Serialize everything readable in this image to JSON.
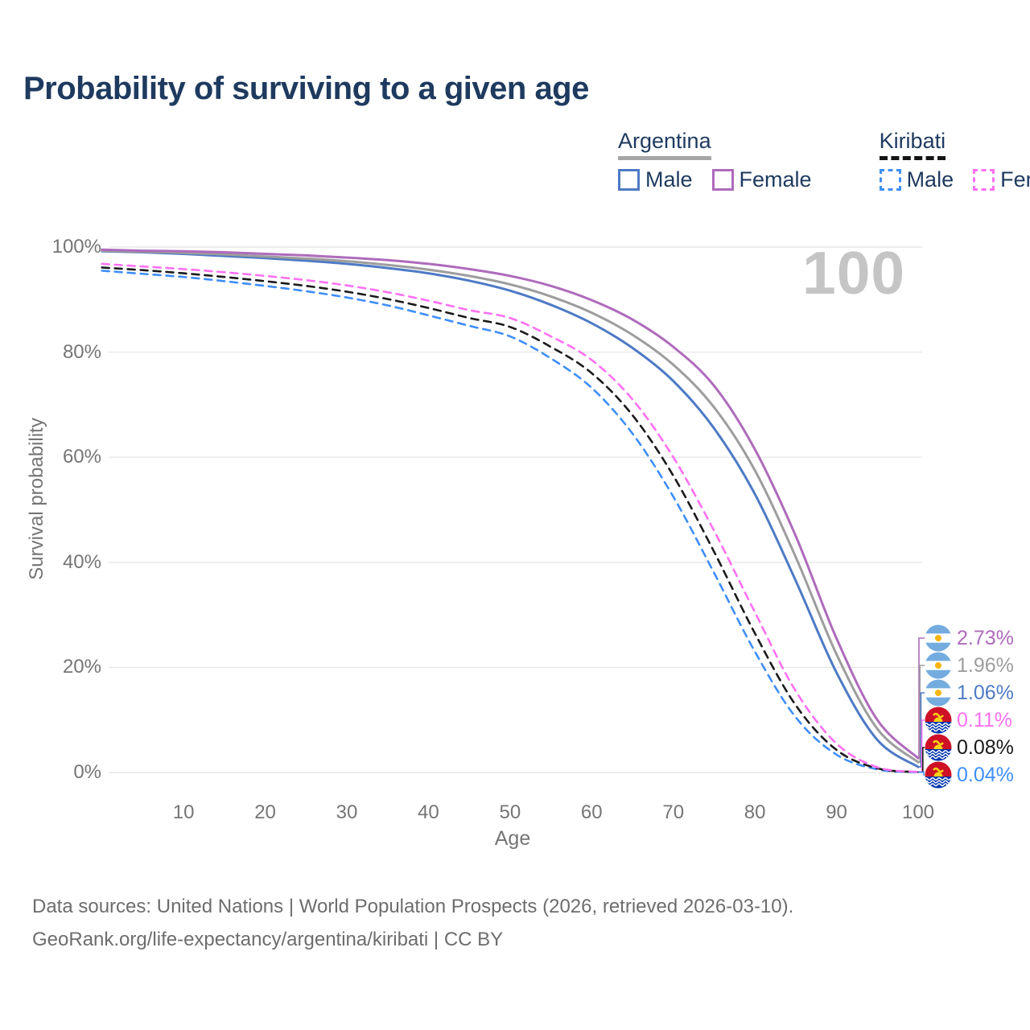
{
  "title": "Probability of surviving to a given age",
  "watermark": "100",
  "legend": {
    "groups": [
      {
        "name": "Argentina",
        "line_style": "solid",
        "underline_color": "#a6a6a6",
        "items": [
          {
            "label": "Male",
            "color": "#4e7ac5",
            "dashed": false
          },
          {
            "label": "Female",
            "color": "#ae6bbb",
            "dashed": false
          }
        ]
      },
      {
        "name": "Kiribati",
        "line_style": "dashed",
        "underline_color": "#141414",
        "items": [
          {
            "label": "Male",
            "color": "#3f8efa",
            "dashed": true
          },
          {
            "label": "Female",
            "color": "#ff70f2",
            "dashed": true
          }
        ]
      }
    ]
  },
  "chart_data": {
    "type": "line",
    "title": "Probability of surviving to a given age",
    "xlabel": "Age",
    "ylabel": "Survival probability",
    "xlim": [
      0,
      100
    ],
    "ylim": [
      0,
      100
    ],
    "grid": "horizontal-only",
    "x": [
      0,
      5,
      10,
      15,
      20,
      25,
      30,
      35,
      40,
      45,
      50,
      55,
      60,
      65,
      70,
      75,
      80,
      85,
      90,
      95,
      100
    ],
    "xticks": [
      10,
      20,
      30,
      40,
      50,
      60,
      70,
      80,
      90,
      100
    ],
    "yticks": [
      {
        "value": 100,
        "label": "100%"
      },
      {
        "value": 80,
        "label": "80%"
      },
      {
        "value": 60,
        "label": "60%"
      },
      {
        "value": 40,
        "label": "40%"
      },
      {
        "value": 20,
        "label": "20%"
      },
      {
        "value": 0,
        "label": "0%"
      }
    ],
    "series": [
      {
        "name": "Argentina Female",
        "country": "Argentina",
        "sex": "Female",
        "color": "#ae6bbb",
        "dashed": false,
        "flag": "argentina",
        "end_label": "2.73%",
        "values": [
          99.5,
          99.3,
          99.2,
          99.0,
          98.7,
          98.4,
          98.0,
          97.5,
          96.8,
          95.8,
          94.5,
          92.6,
          89.9,
          86.2,
          81.0,
          73.6,
          61.5,
          45.0,
          25.5,
          10.0,
          2.73
        ]
      },
      {
        "name": "Argentina Both sexes",
        "country": "Argentina",
        "sex": "Both",
        "color": "#9d9d9d",
        "dashed": false,
        "flag": "argentina",
        "end_label": "1.96%",
        "values": [
          99.3,
          99.1,
          98.9,
          98.6,
          98.2,
          97.8,
          97.3,
          96.6,
          95.7,
          94.5,
          92.9,
          90.6,
          87.5,
          83.3,
          77.6,
          69.5,
          57.5,
          41.0,
          22.5,
          8.3,
          1.96
        ]
      },
      {
        "name": "Argentina Male",
        "country": "Argentina",
        "sex": "Male",
        "color": "#4e7ac5",
        "dashed": false,
        "flag": "argentina",
        "end_label": "1.06%",
        "values": [
          99.2,
          99.0,
          98.7,
          98.3,
          97.9,
          97.4,
          96.8,
          96.0,
          95.0,
          93.6,
          91.7,
          89.0,
          85.5,
          80.8,
          74.5,
          65.5,
          53.0,
          36.5,
          19.0,
          6.2,
          1.06
        ]
      },
      {
        "name": "Kiribati Female",
        "country": "Kiribati",
        "sex": "Female",
        "color": "#ff70f2",
        "dashed": true,
        "flag": "kiribati",
        "end_label": "0.11%",
        "values": [
          96.8,
          96.3,
          95.8,
          95.2,
          94.5,
          93.7,
          92.7,
          91.4,
          89.8,
          88.0,
          86.5,
          83.0,
          78.5,
          71.0,
          60.0,
          46.0,
          30.5,
          15.5,
          5.5,
          1.0,
          0.11
        ]
      },
      {
        "name": "Kiribati Both sexes",
        "country": "Kiribati",
        "sex": "Both",
        "color": "#1a1a1a",
        "dashed": true,
        "flag": "kiribati",
        "end_label": "0.08%",
        "values": [
          96.1,
          95.6,
          95.0,
          94.3,
          93.5,
          92.6,
          91.5,
          90.1,
          88.4,
          86.5,
          84.8,
          81.0,
          76.0,
          68.0,
          56.5,
          42.0,
          26.5,
          12.8,
          4.3,
          0.8,
          0.08
        ]
      },
      {
        "name": "Kiribati Male",
        "country": "Kiribati",
        "sex": "Male",
        "color": "#3f8efa",
        "dashed": true,
        "flag": "kiribati",
        "end_label": "0.04%",
        "values": [
          95.5,
          94.9,
          94.3,
          93.5,
          92.6,
          91.6,
          90.4,
          88.9,
          87.0,
          85.0,
          83.0,
          78.8,
          73.2,
          64.5,
          52.5,
          38.0,
          23.0,
          10.5,
          3.4,
          0.6,
          0.04
        ]
      }
    ]
  },
  "flags": {
    "argentina": {
      "band": "#74ACDF",
      "middle": "#ffffff",
      "sun": "#F6B40E"
    },
    "kiribati": {
      "top": "#CE1126",
      "bottom": "#0035ad",
      "emblem": "#FCD116",
      "waves": "#ffffff"
    }
  },
  "source": {
    "line1": "Data sources: United Nations | World Population Prospects (2026, retrieved 2026-03-10).",
    "line2": "GeoRank.org/life-expectancy/argentina/kiribati | CC BY"
  }
}
